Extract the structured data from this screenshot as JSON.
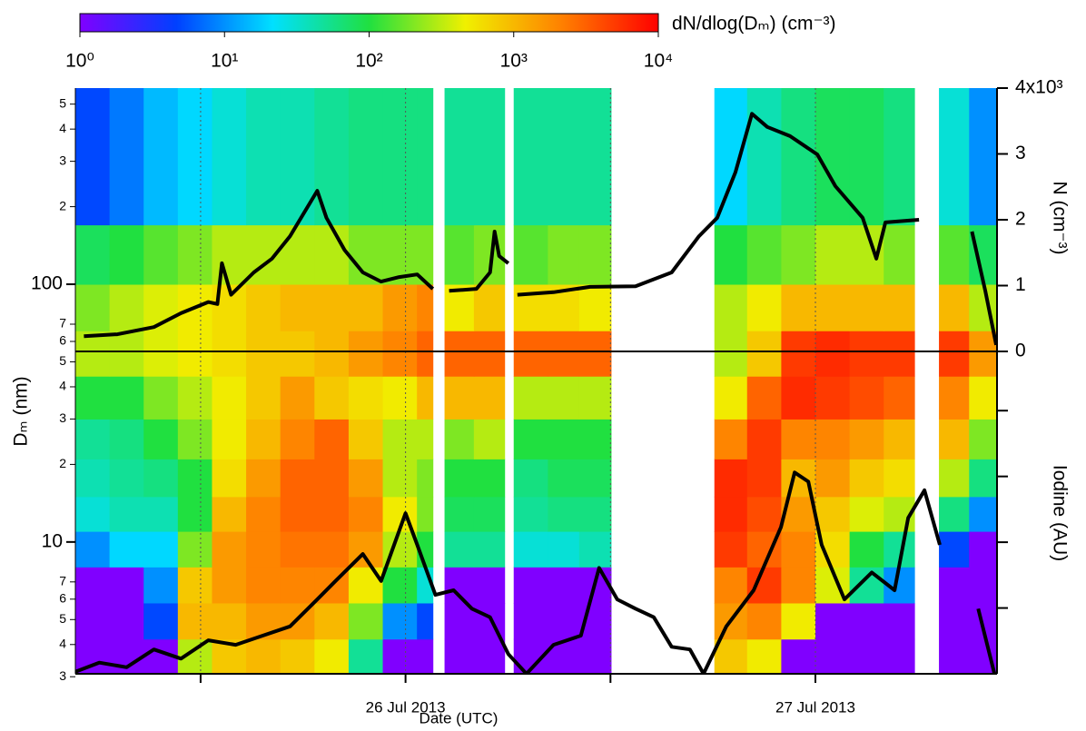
{
  "chart_data": {
    "type": "heatmap",
    "colorbar_label": "dN/dlog(Dₘ) (cm⁻³)",
    "colorlim": [
      1,
      10000
    ],
    "colorticks": [
      {
        "value": 1,
        "label": "10⁰"
      },
      {
        "value": 10,
        "label": "10¹"
      },
      {
        "value": 100,
        "label": "10²"
      },
      {
        "value": 1000,
        "label": "10³"
      },
      {
        "value": 10000,
        "label": "10⁴"
      }
    ],
    "colorscale": [
      "#8000ff",
      "#0040ff",
      "#00e0ff",
      "#20e040",
      "#f0f000",
      "#ff8000",
      "#ff0000"
    ],
    "xlabel": "Date (UTC)",
    "xlim": [
      "2013-07-25T04:40",
      "2013-07-27T10:38"
    ],
    "xticks": [
      {
        "value": "2013-07-25T12:00",
        "label": null
      },
      {
        "value": "2013-07-26",
        "label": "26 Jul 2013"
      },
      {
        "value": "2013-07-26T12:00",
        "label": null
      },
      {
        "value": "2013-07-27",
        "label": "27 Jul 2013"
      }
    ],
    "ylabel": "Dₘ (nm)",
    "ylog": true,
    "ylim": [
      3.08,
      577
    ],
    "yticks": [
      3,
      4,
      5,
      6,
      7,
      10,
      {
        "value": 20,
        "label": "2"
      },
      {
        "value": 30,
        "label": "3"
      },
      {
        "value": 40,
        "label": "4"
      },
      {
        "value": 50,
        "label": "5"
      },
      {
        "value": 60,
        "label": "6"
      },
      {
        "value": 70,
        "label": "7"
      },
      100,
      {
        "value": 200,
        "label": "2"
      },
      {
        "value": 300,
        "label": "3"
      },
      {
        "value": 400,
        "label": "4"
      },
      {
        "value": 500,
        "label": "5"
      }
    ],
    "y2label": "N (cm⁻³)",
    "y2lim": [
      0,
      4
    ],
    "y2ticks": [
      0,
      1,
      2,
      3,
      {
        "value": 4,
        "label": "4x10³"
      }
    ],
    "y3label": "Iodine (AU)",
    "y3lim": [
      0,
      4.9
    ],
    "y3ticks": [
      1,
      2,
      3,
      4
    ],
    "x_edges": [
      "2013-07-25T04:40",
      "2013-07-25T06:40",
      "2013-07-25T08:40",
      "2013-07-25T10:40",
      "2013-07-25T12:40",
      "2013-07-25T14:40",
      "2013-07-25T16:40",
      "2013-07-25T18:40",
      "2013-07-25T20:40",
      "2013-07-25T22:40",
      "2013-07-26T00:40",
      "2013-07-26T01:36",
      "2013-07-26T02:17",
      "2013-07-26T04:00",
      "2013-07-26T05:48",
      "2013-07-26T06:20",
      "2013-07-26T08:20",
      "2013-07-26T10:10",
      "2013-07-26T12:02",
      "2013-07-26T18:05",
      "2013-07-26T20:00",
      "2013-07-26T22:00",
      "2013-07-27T00:00",
      "2013-07-27T02:00",
      "2013-07-27T04:00",
      "2013-07-27T05:48",
      "2013-07-27T07:14",
      "2013-07-27T09:00",
      "2013-07-27T10:38"
    ],
    "y_edges": [
      3.08,
      4.2,
      5.8,
      8,
      11,
      15,
      21,
      30,
      44,
      66,
      100,
      170,
      577
    ],
    "z": [
      [
        1,
        1,
        1,
        300,
        800,
        1000,
        800,
        500,
        50,
        1,
        1,
        null,
        1,
        1,
        null,
        1,
        1,
        1,
        null,
        800,
        500,
        1,
        1,
        1,
        1,
        null,
        1,
        1
      ],
      [
        1,
        1,
        5,
        1000,
        1000,
        1500,
        1500,
        1000,
        200,
        10,
        5,
        null,
        1,
        1,
        null,
        1,
        1,
        1,
        null,
        1500,
        2000,
        500,
        1,
        1,
        1,
        null,
        1,
        1
      ],
      [
        1,
        1,
        10,
        800,
        1500,
        2000,
        2000,
        2000,
        500,
        100,
        30,
        null,
        1,
        1,
        null,
        1,
        1,
        1,
        null,
        2000,
        5000,
        2000,
        400,
        50,
        10,
        null,
        1,
        1
      ],
      [
        10,
        20,
        20,
        200,
        1500,
        2000,
        2500,
        2500,
        1500,
        300,
        100,
        null,
        50,
        50,
        null,
        30,
        30,
        40,
        null,
        5000,
        3000,
        2000,
        600,
        100,
        50,
        null,
        5,
        1
      ],
      [
        30,
        40,
        40,
        100,
        1000,
        2000,
        3000,
        3000,
        2000,
        500,
        200,
        null,
        80,
        80,
        null,
        50,
        60,
        60,
        null,
        6000,
        4000,
        1500,
        800,
        400,
        300,
        null,
        60,
        10
      ],
      [
        40,
        50,
        60,
        100,
        600,
        1500,
        3000,
        3000,
        1500,
        300,
        200,
        null,
        100,
        100,
        null,
        60,
        80,
        80,
        null,
        6000,
        5000,
        1000,
        1500,
        800,
        600,
        null,
        300,
        60
      ],
      [
        50,
        60,
        100,
        200,
        500,
        1000,
        2000,
        3000,
        800,
        300,
        300,
        null,
        200,
        300,
        null,
        100,
        100,
        100,
        null,
        2000,
        5000,
        2000,
        2000,
        1500,
        1000,
        null,
        1000,
        200
      ],
      [
        100,
        100,
        200,
        300,
        500,
        800,
        1500,
        800,
        600,
        500,
        1000,
        null,
        1000,
        1000,
        null,
        300,
        300,
        300,
        null,
        500,
        3000,
        6000,
        5000,
        4000,
        3000,
        null,
        2000,
        500
      ],
      [
        300,
        300,
        400,
        500,
        600,
        800,
        800,
        1000,
        1500,
        2000,
        3000,
        null,
        3000,
        3000,
        null,
        3000,
        3000,
        3000,
        null,
        300,
        800,
        5000,
        6000,
        5000,
        5000,
        null,
        5000,
        1500
      ],
      [
        200,
        300,
        400,
        500,
        600,
        800,
        1000,
        1000,
        1000,
        1500,
        2000,
        null,
        500,
        800,
        null,
        600,
        600,
        500,
        null,
        300,
        500,
        1000,
        1000,
        1000,
        1000,
        null,
        1000,
        300
      ],
      [
        80,
        100,
        150,
        200,
        300,
        300,
        300,
        300,
        200,
        200,
        200,
        null,
        150,
        200,
        null,
        150,
        200,
        200,
        null,
        100,
        150,
        200,
        300,
        300,
        200,
        null,
        150,
        80
      ],
      [
        5,
        8,
        15,
        20,
        30,
        40,
        40,
        50,
        60,
        60,
        60,
        null,
        50,
        50,
        null,
        50,
        50,
        50,
        null,
        20,
        40,
        60,
        80,
        80,
        60,
        null,
        30,
        10
      ]
    ],
    "lines": [
      {
        "axis": "y2",
        "color": "#000000",
        "x": [
          "2013-07-25T05:10",
          "2013-07-25T07:08",
          "2013-07-25T09:16",
          "2013-07-25T10:51",
          "2013-07-25T12:27",
          "2013-07-25T12:59",
          "2013-07-25T13:15",
          "2013-07-25T13:47",
          "2013-07-25T15:07",
          "2013-07-25T16:11",
          "2013-07-25T17:14",
          "2013-07-25T18:50",
          "2013-07-25T19:22",
          "2013-07-25T20:26",
          "2013-07-25T21:30",
          "2013-07-25T22:34",
          "2013-07-25T23:38",
          "2013-07-26T00:41",
          "2013-07-26T01:36",
          "2013-07-26T02:00",
          "2013-07-26T02:33",
          "2013-07-26T04:09",
          "2013-07-26T04:57",
          "2013-07-26T05:13",
          "2013-07-26T05:29",
          "2013-07-26T06:01",
          "2013-07-26T06:10",
          "2013-07-26T06:33",
          "2013-07-26T08:40",
          "2013-07-26T10:48",
          "2013-07-26T13:28",
          "2013-07-26T15:35",
          "2013-07-26T17:11",
          "2013-07-26T18:15",
          "2013-07-26T19:19",
          "2013-07-26T20:17",
          "2013-07-26T21:11",
          "2013-07-26T22:31",
          "2013-07-27T00:07",
          "2013-07-27T01:10",
          "2013-07-27T02:46",
          "2013-07-27T03:34",
          "2013-07-27T04:06",
          "2013-07-27T06:04",
          "2013-07-27T06:40",
          "2013-07-27T09:10",
          "2013-07-27T09:57",
          "2013-07-27T10:35"
        ],
        "values": [
          0.23,
          0.26,
          0.37,
          0.58,
          0.75,
          0.72,
          1.34,
          0.86,
          1.2,
          1.41,
          1.75,
          2.44,
          2.03,
          1.54,
          1.2,
          1.06,
          1.13,
          1.17,
          0.95,
          null,
          0.92,
          0.95,
          1.2,
          1.82,
          1.45,
          1.34,
          null,
          0.86,
          0.9,
          0.98,
          0.99,
          1.2,
          1.75,
          2.03,
          2.72,
          3.61,
          3.41,
          3.27,
          2.99,
          2.51,
          2.03,
          1.41,
          1.96,
          2.0,
          null,
          1.82,
          0.92,
          0.1
        ]
      },
      {
        "axis": "y3",
        "color": "#000000",
        "x": [
          "2013-07-25T04:40",
          "2013-07-25T06:04",
          "2013-07-25T07:40",
          "2013-07-25T09:16",
          "2013-07-25T10:51",
          "2013-07-25T12:27",
          "2013-07-25T14:03",
          "2013-07-25T15:38",
          "2013-07-25T17:14",
          "2013-07-25T18:50",
          "2013-07-25T19:54",
          "2013-07-25T21:30",
          "2013-07-25T22:34",
          "2013-07-26T00:00",
          "2013-07-26T00:41",
          "2013-07-26T01:45",
          "2013-07-26T02:49",
          "2013-07-26T03:53",
          "2013-07-26T04:57",
          "2013-07-26T06:01",
          "2013-07-26T07:05",
          "2013-07-26T08:40",
          "2013-07-26T10:16",
          "2013-07-26T11:20",
          "2013-07-26T12:24",
          "2013-07-26T13:28",
          "2013-07-26T14:32",
          "2013-07-26T15:35",
          "2013-07-26T16:39",
          "2013-07-26T17:27",
          "2013-07-26T18:47",
          "2013-07-26T20:23",
          "2013-07-26T21:59",
          "2013-07-26T22:47",
          "2013-07-26T23:35",
          "2013-07-27T00:22",
          "2013-07-27T01:42",
          "2013-07-27T03:18",
          "2013-07-27T04:38",
          "2013-07-27T05:26",
          "2013-07-27T06:23",
          "2013-07-27T07:17",
          "2013-07-27T08:00",
          "2013-07-27T09:32",
          "2013-07-27T10:29"
        ],
        "values": [
          0.03,
          0.17,
          0.1,
          0.37,
          0.23,
          0.51,
          0.44,
          0.58,
          0.72,
          1.13,
          1.41,
          1.82,
          1.41,
          2.44,
          1.96,
          1.2,
          1.27,
          0.99,
          0.86,
          0.3,
          0.0,
          0.44,
          0.58,
          1.61,
          1.13,
          0.99,
          0.86,
          0.41,
          0.37,
          0,
          0.72,
          1.27,
          2.23,
          3.06,
          2.92,
          1.96,
          1.13,
          1.54,
          1.27,
          2.37,
          2.79,
          1.96,
          null,
          0.99,
          0
        ]
      }
    ]
  }
}
